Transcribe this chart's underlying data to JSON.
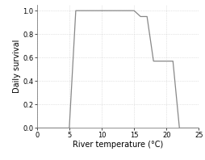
{
  "x": [
    0,
    5,
    6,
    15,
    16,
    17,
    18,
    21,
    22,
    25
  ],
  "y": [
    0.0,
    0.0,
    1.0,
    1.0,
    0.95,
    0.95,
    0.57,
    0.57,
    0.0,
    0.0
  ],
  "xlim": [
    0,
    25
  ],
  "ylim": [
    0.0,
    1.05
  ],
  "xticks": [
    0,
    5,
    10,
    15,
    20,
    25
  ],
  "yticks": [
    0.0,
    0.2,
    0.4,
    0.6,
    0.8,
    1.0
  ],
  "xlabel": "River temperature (°C)",
  "ylabel": "Daily survival",
  "line_color": "#888888",
  "line_width": 0.9,
  "grid_color": "#cccccc",
  "grid_style": "dotted",
  "bg_color": "#ffffff",
  "fig_width": 2.54,
  "fig_height": 1.98,
  "dpi": 100,
  "tick_labelsize": 6,
  "xlabel_fontsize": 7,
  "ylabel_fontsize": 7
}
